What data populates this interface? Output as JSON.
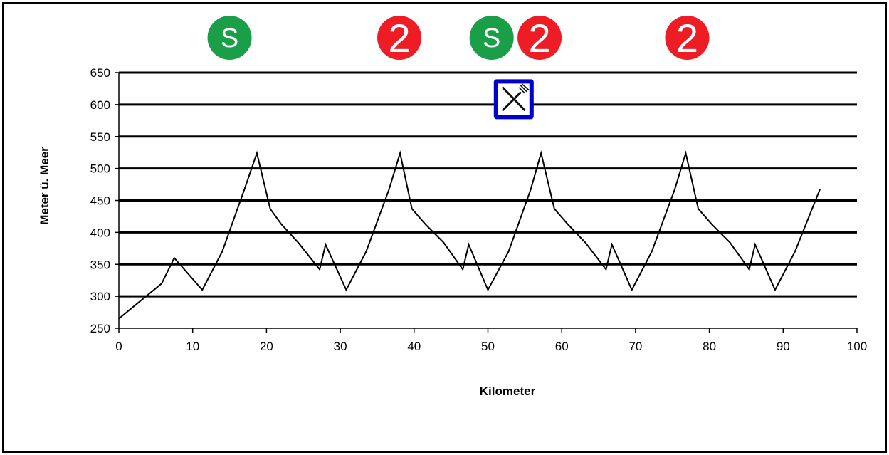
{
  "chart_data": {
    "type": "line",
    "xlabel": "Kilometer",
    "ylabel": "Meter ü. Meer",
    "xlim": [
      0,
      100
    ],
    "ylim": [
      250,
      650
    ],
    "x_ticks": [
      0,
      10,
      20,
      30,
      40,
      50,
      60,
      70,
      80,
      90,
      100
    ],
    "y_ticks": [
      250,
      300,
      350,
      400,
      450,
      500,
      550,
      600,
      650
    ],
    "grid": "horizontal",
    "legend": "none",
    "line_color": "#000000",
    "series": [
      {
        "x": [
          0,
          5.8,
          7.5,
          11.3,
          14,
          17,
          18.7,
          20.5,
          22,
          24.3,
          27.2,
          28,
          30.8,
          33.5,
          36.6,
          38.1,
          39.7,
          41.5,
          44,
          46.6,
          47.4,
          50,
          52.8,
          55.8,
          57.2,
          59,
          60.8,
          63.2,
          66,
          66.8,
          69.5,
          72.2,
          75.3,
          76.8,
          78.5,
          80.3,
          82.8,
          85.4,
          86.2,
          88.9,
          91.6,
          95
        ],
        "y": [
          265,
          320,
          360,
          310,
          370,
          467,
          524,
          437,
          413,
          384,
          342,
          381,
          310,
          370,
          467,
          524,
          437,
          413,
          384,
          342,
          381,
          310,
          370,
          467,
          524,
          437,
          413,
          384,
          342,
          381,
          310,
          370,
          467,
          524,
          437,
          413,
          384,
          342,
          381,
          310,
          370,
          468
        ]
      }
    ],
    "markers": [
      {
        "label": "S",
        "x": 15,
        "color": "#1a9e48"
      },
      {
        "label": "2",
        "x": 38,
        "color": "#ee1c25"
      },
      {
        "label": "S",
        "x": 50.5,
        "color": "#1a9e48"
      },
      {
        "label": "2",
        "x": 57,
        "color": "#ee1c25"
      },
      {
        "label": "2",
        "x": 77,
        "color": "#ee1c25"
      }
    ],
    "restaurant_icon": {
      "x": 53.5,
      "y": 605,
      "icon": "fork-knife-icon",
      "border_color": "#0000cc"
    }
  }
}
